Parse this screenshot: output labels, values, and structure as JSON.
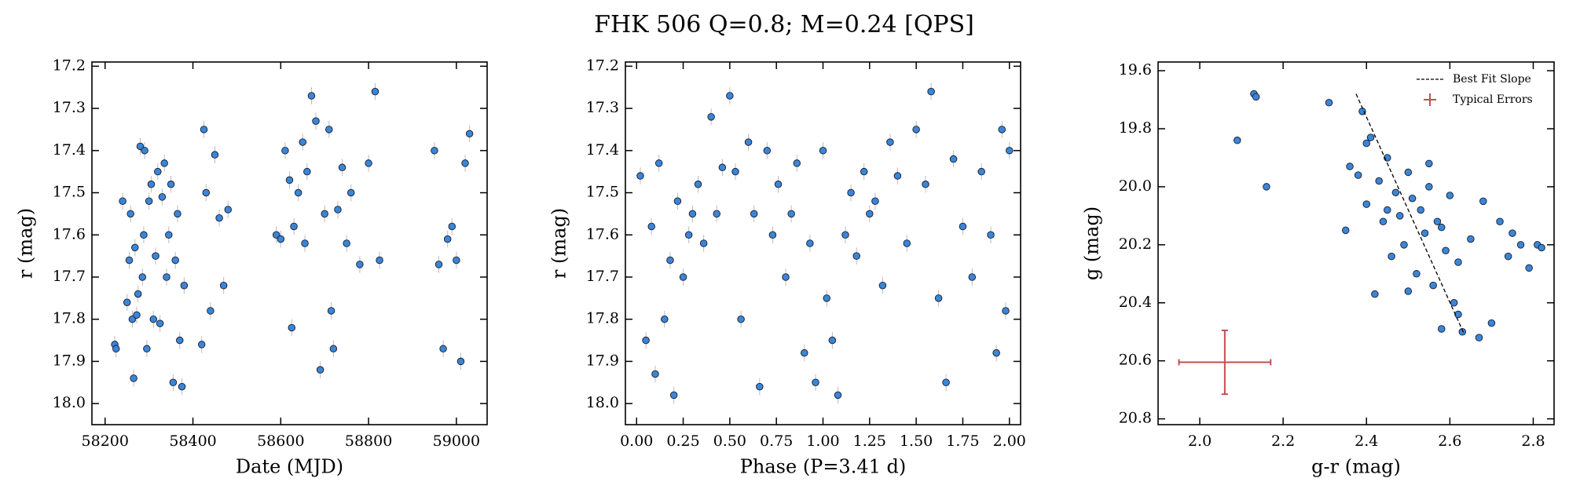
{
  "title": "FHK 506  Q=0.8; M=0.24 [QPS]",
  "chart_data": [
    {
      "type": "scatter",
      "x_label": "Date (MJD)",
      "y_label": "r (mag)",
      "y_inverted": true,
      "color": "#3a86d6",
      "error_color": "#bbbbbb",
      "yerr": 0.02,
      "xlim": [
        58170,
        59070
      ],
      "xticks": [
        58200,
        58400,
        58600,
        58800,
        59000
      ],
      "ylim": [
        17.19,
        18.05
      ],
      "yticks": [
        17.2,
        17.3,
        17.4,
        17.5,
        17.6,
        17.7,
        17.8,
        17.9,
        {
          "value": 18,
          "label": "18.0"
        }
      ],
      "x": [
        58222,
        58225,
        58240,
        58250,
        58255,
        58258,
        58262,
        58265,
        58268,
        58272,
        58275,
        58280,
        58285,
        58288,
        58290,
        58295,
        58300,
        58305,
        58310,
        58315,
        58320,
        58325,
        58330,
        58335,
        58340,
        58345,
        58350,
        58355,
        58360,
        58365,
        58370,
        58375,
        58380,
        58420,
        58425,
        58430,
        58440,
        58450,
        58460,
        58470,
        58480,
        58590,
        58600,
        58610,
        58620,
        58625,
        58630,
        58640,
        58650,
        58655,
        58660,
        58670,
        58680,
        58690,
        58700,
        58710,
        58715,
        58720,
        58730,
        58740,
        58750,
        58760,
        58780,
        58800,
        58815,
        58825,
        58950,
        58960,
        58970,
        58980,
        58990,
        59000,
        59010,
        59020,
        59030
      ],
      "y": [
        17.86,
        17.87,
        17.52,
        17.76,
        17.66,
        17.55,
        17.8,
        17.94,
        17.63,
        17.79,
        17.74,
        17.39,
        17.7,
        17.6,
        17.4,
        17.87,
        17.52,
        17.48,
        17.8,
        17.65,
        17.45,
        17.81,
        17.51,
        17.43,
        17.7,
        17.6,
        17.48,
        17.95,
        17.66,
        17.55,
        17.85,
        17.96,
        17.72,
        17.86,
        17.35,
        17.5,
        17.78,
        17.41,
        17.56,
        17.72,
        17.54,
        17.6,
        17.61,
        17.4,
        17.47,
        17.82,
        17.58,
        17.5,
        17.38,
        17.62,
        17.45,
        17.27,
        17.33,
        17.92,
        17.55,
        17.35,
        17.78,
        17.87,
        17.54,
        17.44,
        17.62,
        17.5,
        17.67,
        17.43,
        17.26,
        17.66,
        17.4,
        17.67,
        17.87,
        17.61,
        17.58,
        17.66,
        17.9,
        17.43,
        17.36
      ]
    },
    {
      "type": "scatter",
      "x_label": "Phase (P=3.41 d)",
      "y_label": "r (mag)",
      "y_inverted": true,
      "color": "#3a86d6",
      "error_color": "#bbbbbb",
      "yerr": 0.02,
      "xlim": [
        -0.06,
        2.06
      ],
      "xticks": [
        {
          "value": 0,
          "label": "0.00"
        },
        0.25,
        {
          "value": 0.5,
          "label": "0.50"
        },
        0.75,
        {
          "value": 1,
          "label": "1.00"
        },
        1.25,
        {
          "value": 1.5,
          "label": "1.50"
        },
        1.75,
        {
          "value": 2,
          "label": "2.00"
        }
      ],
      "ylim": [
        17.19,
        18.05
      ],
      "yticks": [
        17.2,
        17.3,
        17.4,
        17.5,
        17.6,
        17.7,
        17.8,
        17.9,
        {
          "value": 18,
          "label": "18.0"
        }
      ],
      "x": [
        0.02,
        0.05,
        0.08,
        0.1,
        0.12,
        0.15,
        0.18,
        0.2,
        0.22,
        0.25,
        0.28,
        0.3,
        0.33,
        0.36,
        0.4,
        0.43,
        0.46,
        0.5,
        0.53,
        0.56,
        0.6,
        0.63,
        0.66,
        0.7,
        0.73,
        0.76,
        0.8,
        0.83,
        0.86,
        0.9,
        0.93,
        0.96,
        1.0,
        1.02,
        1.05,
        1.08,
        1.12,
        1.15,
        1.18,
        1.22,
        1.25,
        1.28,
        1.32,
        1.36,
        1.4,
        1.45,
        1.5,
        1.55,
        1.58,
        1.62,
        1.66,
        1.7,
        1.75,
        1.8,
        1.85,
        1.9,
        1.93,
        1.96,
        1.98,
        2.0
      ],
      "y": [
        17.46,
        17.85,
        17.58,
        17.93,
        17.43,
        17.8,
        17.66,
        17.98,
        17.52,
        17.7,
        17.6,
        17.55,
        17.48,
        17.62,
        17.32,
        17.55,
        17.44,
        17.27,
        17.45,
        17.8,
        17.38,
        17.55,
        17.96,
        17.4,
        17.6,
        17.48,
        17.7,
        17.55,
        17.43,
        17.88,
        17.62,
        17.95,
        17.4,
        17.75,
        17.85,
        17.98,
        17.6,
        17.5,
        17.65,
        17.45,
        17.55,
        17.52,
        17.72,
        17.38,
        17.46,
        17.62,
        17.35,
        17.48,
        17.26,
        17.75,
        17.95,
        17.42,
        17.58,
        17.7,
        17.45,
        17.6,
        17.88,
        17.35,
        17.78,
        17.4
      ]
    },
    {
      "type": "scatter",
      "x_label": "g-r (mag)",
      "y_label": "g (mag)",
      "y_inverted": true,
      "color": "#3a86d6",
      "legend": "upper right",
      "xlim": [
        1.9,
        2.85
      ],
      "xticks": [
        {
          "value": 2,
          "label": "2.0"
        },
        2.2,
        2.4,
        2.6,
        2.8
      ],
      "ylim": [
        19.57,
        20.82
      ],
      "yticks": [
        19.6,
        19.8,
        {
          "value": 20,
          "label": "20.0"
        },
        20.2,
        20.4,
        20.6,
        20.8
      ],
      "x": [
        2.09,
        2.13,
        2.135,
        2.16,
        2.31,
        2.35,
        2.36,
        2.38,
        2.39,
        2.4,
        2.41,
        2.42,
        2.43,
        2.44,
        2.45,
        2.46,
        2.47,
        2.48,
        2.49,
        2.5,
        2.51,
        2.52,
        2.53,
        2.54,
        2.55,
        2.56,
        2.57,
        2.58,
        2.59,
        2.6,
        2.61,
        2.62,
        2.63,
        2.65,
        2.67,
        2.68,
        2.7,
        2.72,
        2.74,
        2.75,
        2.77,
        2.79,
        2.81,
        2.82,
        2.4,
        2.45,
        2.5,
        2.55,
        2.58,
        2.62
      ],
      "y": [
        19.84,
        19.68,
        19.69,
        20.0,
        19.71,
        20.15,
        19.93,
        19.96,
        19.74,
        20.06,
        19.83,
        20.37,
        19.98,
        20.12,
        19.9,
        20.24,
        20.02,
        20.1,
        20.2,
        19.95,
        20.04,
        20.3,
        20.08,
        20.16,
        19.92,
        20.34,
        20.12,
        20.49,
        20.22,
        20.03,
        20.4,
        20.26,
        20.5,
        20.18,
        20.52,
        20.05,
        20.47,
        20.12,
        20.24,
        20.16,
        20.2,
        20.28,
        20.2,
        20.21,
        19.85,
        20.08,
        20.36,
        20.0,
        20.14,
        20.44
      ],
      "fit_line": {
        "name": "Best Fit Slope",
        "color": "#000000",
        "x": [
          2.375,
          2.635
        ],
        "y": [
          19.68,
          20.51
        ]
      },
      "errors": {
        "name": "Typical Errors",
        "color": "#c44e52",
        "x": 2.06,
        "y": 20.605,
        "xerr": 0.11,
        "yerr": 0.11
      }
    }
  ]
}
